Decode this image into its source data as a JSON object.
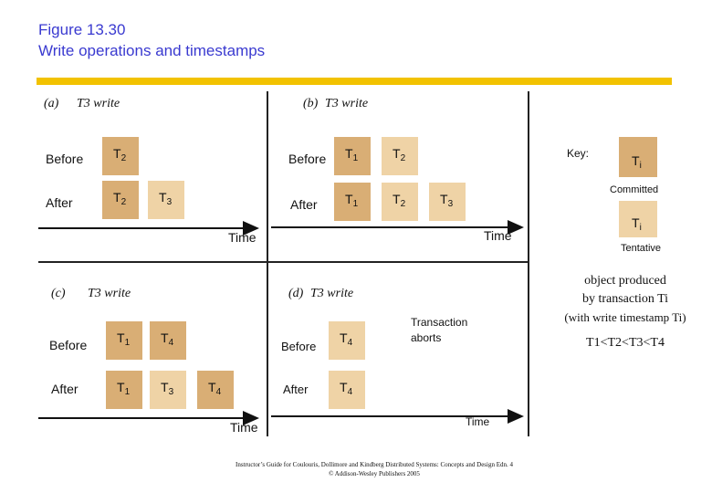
{
  "title": {
    "line1": "Figure 13.30",
    "line2": "Write operations and timestamps"
  },
  "labels": {
    "before": "Before",
    "after": "After",
    "time": "Time",
    "key": "Key:"
  },
  "panels": {
    "a": {
      "tag": "(a)",
      "caption": "T3 write"
    },
    "b": {
      "tag": "(b)",
      "caption": "T3 write"
    },
    "c": {
      "tag": "(c)",
      "caption": "T3 write"
    },
    "d": {
      "tag": "(d)",
      "caption": "T3 write",
      "note_line1": "Transaction",
      "note_line2": "aborts"
    }
  },
  "boxes": {
    "T": "T",
    "s1": "1",
    "s2": "2",
    "s3": "3",
    "s4": "4",
    "si": "i"
  },
  "key": {
    "committed": "Committed",
    "tentative": "Tentative",
    "desc_line1": "object produced",
    "desc_line2": "by transaction Ti",
    "desc_line3": "(with write timestamp Ti)",
    "order": "T1<T2<T3<T4"
  },
  "footer": {
    "line1": "Instructor’s Guide for Coulouris, Dollimore and Kindberg Distributed Systems: Concepts and Design Edn. 4",
    "line2": "© Addison-Wesley Publishers 2005"
  },
  "colors": {
    "committed": "#d9ae75",
    "tentative": "#efd3a6",
    "title": "#3a3ad0",
    "rule": "#f2c200"
  }
}
